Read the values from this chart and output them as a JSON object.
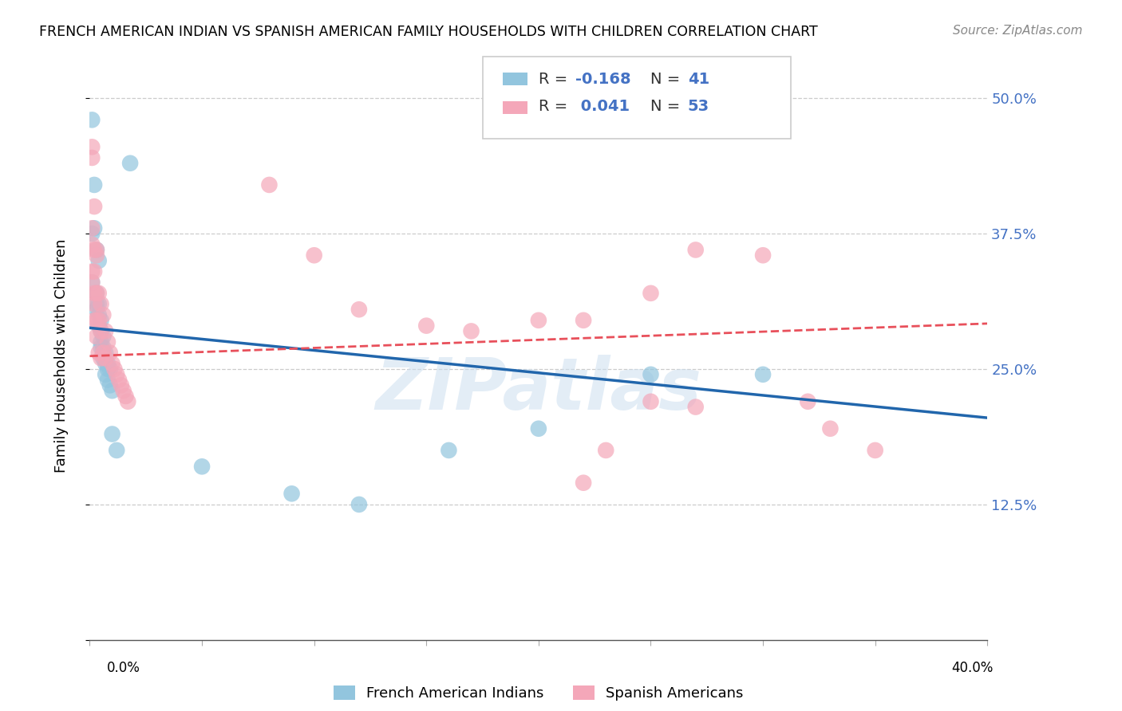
{
  "title": "FRENCH AMERICAN INDIAN VS SPANISH AMERICAN FAMILY HOUSEHOLDS WITH CHILDREN CORRELATION CHART",
  "source": "Source: ZipAtlas.com",
  "ylabel": "Family Households with Children",
  "watermark": "ZIPatlas",
  "legend_blue_r": "-0.168",
  "legend_blue_n": "41",
  "legend_pink_r": "0.041",
  "legend_pink_n": "53",
  "blue_color": "#92c5de",
  "pink_color": "#f4a7b9",
  "blue_line_color": "#2166ac",
  "pink_line_color": "#e8505b",
  "blue_points_x": [
    0.001,
    0.002,
    0.018,
    0.001,
    0.003,
    0.004,
    0.003,
    0.004,
    0.003,
    0.004,
    0.005,
    0.004,
    0.005,
    0.006,
    0.005,
    0.006,
    0.007,
    0.006,
    0.007,
    0.008,
    0.007,
    0.008,
    0.009,
    0.01,
    0.05,
    0.09,
    0.12,
    0.16,
    0.2,
    0.25,
    0.3,
    0.002,
    0.001,
    0.003,
    0.005,
    0.006,
    0.007,
    0.008,
    0.009,
    0.01,
    0.012
  ],
  "blue_points_y": [
    0.48,
    0.42,
    0.44,
    0.375,
    0.36,
    0.35,
    0.32,
    0.31,
    0.305,
    0.3,
    0.295,
    0.29,
    0.285,
    0.28,
    0.275,
    0.27,
    0.265,
    0.26,
    0.255,
    0.25,
    0.245,
    0.24,
    0.235,
    0.23,
    0.16,
    0.135,
    0.125,
    0.175,
    0.195,
    0.245,
    0.245,
    0.38,
    0.33,
    0.31,
    0.27,
    0.265,
    0.26,
    0.255,
    0.25,
    0.19,
    0.175
  ],
  "pink_points_x": [
    0.001,
    0.001,
    0.001,
    0.001,
    0.002,
    0.002,
    0.002,
    0.002,
    0.003,
    0.003,
    0.003,
    0.003,
    0.004,
    0.004,
    0.004,
    0.005,
    0.005,
    0.005,
    0.006,
    0.006,
    0.007,
    0.007,
    0.008,
    0.009,
    0.01,
    0.011,
    0.012,
    0.013,
    0.014,
    0.015,
    0.016,
    0.017,
    0.08,
    0.1,
    0.12,
    0.15,
    0.17,
    0.2,
    0.22,
    0.25,
    0.27,
    0.3,
    0.32,
    0.33,
    0.35,
    0.27,
    0.25,
    0.23,
    0.22,
    0.001,
    0.001,
    0.002,
    0.002,
    0.003
  ],
  "pink_points_y": [
    0.455,
    0.445,
    0.38,
    0.365,
    0.4,
    0.36,
    0.34,
    0.295,
    0.36,
    0.32,
    0.295,
    0.28,
    0.32,
    0.295,
    0.265,
    0.31,
    0.285,
    0.26,
    0.3,
    0.265,
    0.285,
    0.26,
    0.275,
    0.265,
    0.255,
    0.25,
    0.245,
    0.24,
    0.235,
    0.23,
    0.225,
    0.22,
    0.42,
    0.355,
    0.305,
    0.29,
    0.285,
    0.295,
    0.295,
    0.32,
    0.36,
    0.355,
    0.22,
    0.195,
    0.175,
    0.215,
    0.22,
    0.175,
    0.145,
    0.34,
    0.33,
    0.32,
    0.31,
    0.355
  ],
  "xmin": 0.0,
  "xmax": 0.4,
  "ymin": 0.0,
  "ymax": 0.525,
  "yticks": [
    0.0,
    0.125,
    0.25,
    0.375,
    0.5
  ],
  "ytick_labels": [
    "",
    "12.5%",
    "25.0%",
    "37.5%",
    "50.0%"
  ],
  "blue_trend_x": [
    0.0,
    0.4
  ],
  "blue_trend_y": [
    0.288,
    0.205
  ],
  "pink_trend_x": [
    0.0,
    0.4
  ],
  "pink_trend_y": [
    0.262,
    0.292
  ],
  "legend_label_blue": "French American Indians",
  "legend_label_pink": "Spanish Americans"
}
